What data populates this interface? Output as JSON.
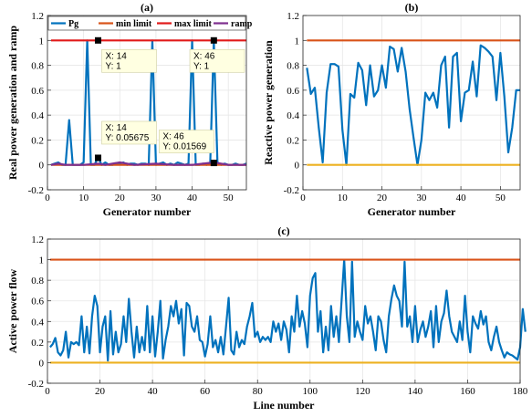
{
  "colors": {
    "pg": "#0072BD",
    "min_limit": "#D95319",
    "max_limit": "#E11A1A",
    "ramp": "#7E2F8E",
    "lower": "#EDB120",
    "upper": "#D95319"
  },
  "chart_data": [
    {
      "id": "a",
      "type": "line",
      "title": "(a)",
      "xlabel": "Generator number",
      "ylabel": "Real power generation and ramp",
      "xlim": [
        0,
        55
      ],
      "ylim": [
        -0.2,
        1.2
      ],
      "xticks": [
        0,
        10,
        20,
        30,
        40,
        50
      ],
      "yticks": [
        -0.2,
        0,
        0.2,
        0.4,
        0.6,
        0.8,
        1,
        1.2
      ],
      "grid": true,
      "legend_position": "top",
      "series": [
        {
          "name": "Pg",
          "color": "#0072BD",
          "x": [
            1,
            2,
            3,
            4,
            5,
            6,
            7,
            8,
            9,
            10,
            11,
            12,
            13,
            14,
            15,
            16,
            17,
            18,
            19,
            20,
            21,
            22,
            23,
            24,
            25,
            26,
            27,
            28,
            29,
            30,
            31,
            32,
            33,
            34,
            35,
            36,
            37,
            38,
            39,
            40,
            41,
            42,
            43,
            44,
            45,
            46,
            47,
            48,
            49,
            50,
            51,
            52,
            53,
            54,
            55
          ],
          "y": [
            0,
            0.01,
            0.02,
            0,
            0,
            0.36,
            0,
            0,
            0,
            0.02,
            1,
            0,
            0,
            0.06,
            0,
            0.02,
            0,
            0,
            0.01,
            0.01,
            0.02,
            0,
            0.01,
            0.01,
            0,
            0.01,
            0.01,
            0,
            1,
            0,
            0.01,
            0.02,
            0,
            0.01,
            0,
            0.02,
            0.01,
            0,
            0.01,
            1,
            0,
            0,
            0.01,
            0,
            0.01,
            1,
            0.02,
            0,
            0.01,
            0,
            0,
            0.01,
            0,
            0,
            0.01
          ]
        },
        {
          "name": "min limit",
          "color": "#D95319",
          "x": [
            1,
            55
          ],
          "y": [
            0,
            0
          ]
        },
        {
          "name": "max limit",
          "color": "#E11A1A",
          "x": [
            1,
            55
          ],
          "y": [
            1,
            1
          ]
        },
        {
          "name": "ramp",
          "color": "#7E2F8E",
          "x": [
            1,
            3,
            5,
            10,
            14,
            16,
            20,
            24,
            30,
            35,
            40,
            46,
            50,
            55
          ],
          "y": [
            0,
            0.01,
            0,
            0,
            0.01,
            0,
            0.02,
            0,
            0.01,
            0,
            0,
            0.02,
            0,
            0
          ]
        }
      ],
      "datatips": [
        {
          "x": 14,
          "y": 1,
          "lines": [
            "X: 14",
            "Y: 1"
          ]
        },
        {
          "x": 46,
          "y": 1,
          "lines": [
            "X: 46",
            "Y: 1"
          ]
        },
        {
          "x": 14,
          "y": 0.05675,
          "lines": [
            "X: 14",
            "Y: 0.05675"
          ]
        },
        {
          "x": 46,
          "y": 0.01569,
          "lines": [
            "X: 46",
            "Y: 0.01569"
          ]
        }
      ]
    },
    {
      "id": "b",
      "type": "line",
      "title": "(b)",
      "xlabel": "Generator number",
      "ylabel": "Reactive power generation",
      "xlim": [
        0,
        55
      ],
      "ylim": [
        -0.2,
        1.2
      ],
      "xticks": [
        0,
        10,
        20,
        30,
        40,
        50
      ],
      "yticks": [
        -0.2,
        0,
        0.2,
        0.4,
        0.6,
        0.8,
        1,
        1.2
      ],
      "grid": true,
      "series": [
        {
          "color": "#0072BD",
          "x": [
            1,
            2,
            3,
            4,
            5,
            6,
            7,
            8,
            9,
            10,
            11,
            12,
            13,
            14,
            15,
            16,
            17,
            18,
            19,
            20,
            21,
            22,
            23,
            24,
            25,
            26,
            27,
            28,
            29,
            30,
            31,
            32,
            33,
            34,
            35,
            36,
            37,
            38,
            39,
            40,
            41,
            42,
            43,
            44,
            45,
            46,
            47,
            48,
            49,
            50,
            51,
            52,
            53,
            54,
            55
          ],
          "y": [
            0.78,
            0.57,
            0.62,
            0.3,
            0.02,
            0.58,
            0.81,
            0.81,
            0.79,
            0.28,
            0,
            0.57,
            0.54,
            0.82,
            0.76,
            0.48,
            0.8,
            0.55,
            0.6,
            0.8,
            0.62,
            0.95,
            0.93,
            0.75,
            0.94,
            0.75,
            0.45,
            0.22,
            0,
            0.2,
            0.58,
            0.52,
            0.58,
            0.46,
            0.8,
            0.87,
            0.3,
            0.87,
            0.9,
            0.35,
            0.58,
            0.6,
            0.83,
            0.55,
            0.96,
            0.94,
            0.91,
            0.87,
            0.52,
            0.9,
            0.55,
            0.1,
            0.3,
            0.6,
            0.6
          ]
        },
        {
          "color": "#EDB120",
          "x": [
            1,
            55
          ],
          "y": [
            0,
            0
          ]
        },
        {
          "color": "#D95319",
          "x": [
            1,
            55
          ],
          "y": [
            1,
            1
          ]
        }
      ]
    },
    {
      "id": "c",
      "type": "line",
      "title": "(c)",
      "xlabel": "Line number",
      "ylabel": "Active power flow",
      "xlim": [
        0,
        180
      ],
      "ylim": [
        -0.2,
        1.2
      ],
      "xticks": [
        0,
        20,
        40,
        60,
        80,
        100,
        120,
        140,
        160,
        180
      ],
      "yticks": [
        -0.2,
        0,
        0.2,
        0.4,
        0.6,
        0.8,
        1,
        1.2
      ],
      "grid": true,
      "series": [
        {
          "color": "#0072BD",
          "x_start": 1,
          "x_step": 1,
          "y": [
            0.15,
            0.18,
            0.24,
            0.1,
            0.07,
            0.12,
            0.3,
            0.05,
            0.2,
            0.18,
            0.2,
            0.17,
            0.45,
            0.1,
            0.35,
            0.09,
            0.45,
            0.65,
            0.55,
            0.1,
            0.35,
            0.45,
            0.02,
            0.5,
            0.08,
            0.3,
            0.1,
            0.18,
            0.45,
            0.2,
            0.62,
            0.3,
            0.05,
            0.35,
            0.1,
            0.25,
            0.12,
            0.55,
            0.1,
            0.45,
            0.06,
            0.3,
            0.6,
            0.04,
            0.22,
            0.35,
            0.55,
            0.45,
            0.6,
            0.38,
            0.52,
            0.07,
            0.58,
            0.55,
            0.35,
            0.3,
            0.45,
            0.22,
            0.2,
            0.06,
            0.18,
            0.45,
            0.15,
            0.22,
            0.1,
            0.25,
            0.08,
            0.35,
            0.63,
            0.12,
            0.08,
            0.3,
            0.15,
            0.22,
            0.18,
            0.35,
            0.45,
            0.58,
            0.25,
            0.3,
            0.2,
            0.25,
            0.22,
            0.25,
            0.2,
            0.4,
            0.3,
            0.38,
            0.22,
            0.4,
            0.32,
            0.1,
            0.45,
            0.3,
            0.65,
            0.35,
            0.5,
            0.38,
            0.15,
            0.65,
            0.82,
            0.87,
            0.3,
            0.5,
            0.1,
            0.35,
            0.12,
            0.55,
            0.25,
            0.45,
            0.2,
            0.6,
            1,
            0.45,
            0.2,
            0.98,
            0.25,
            0.4,
            0.3,
            0.22,
            0.55,
            0.38,
            0.45,
            0.3,
            0.12,
            0.45,
            0.4,
            0.22,
            0.1,
            0.45,
            0.62,
            0.75,
            0.65,
            0.6,
            0.35,
            0.98,
            0.35,
            0.45,
            0.2,
            0.55,
            0.2,
            0.32,
            0.4,
            0.25,
            0.35,
            0.5,
            0.15,
            0.55,
            0.2,
            0.4,
            0.48,
            0.7,
            0.45,
            0.3,
            0.25,
            0.2,
            0.4,
            0.22,
            0.65,
            0.3,
            0.1,
            0.45,
            0.38,
            0.33,
            0.5,
            0.37,
            0.45,
            0.2,
            0.12,
            0.25,
            0.35,
            0.2,
            0.12,
            0.05,
            0.1,
            0.08,
            0.07,
            0.05,
            0.03,
            0.15,
            0.52,
            0.3
          ]
        },
        {
          "color": "#EDB120",
          "x": [
            1,
            180
          ],
          "y": [
            0,
            0
          ]
        },
        {
          "color": "#D95319",
          "x": [
            1,
            180
          ],
          "y": [
            1,
            1
          ]
        }
      ]
    }
  ]
}
